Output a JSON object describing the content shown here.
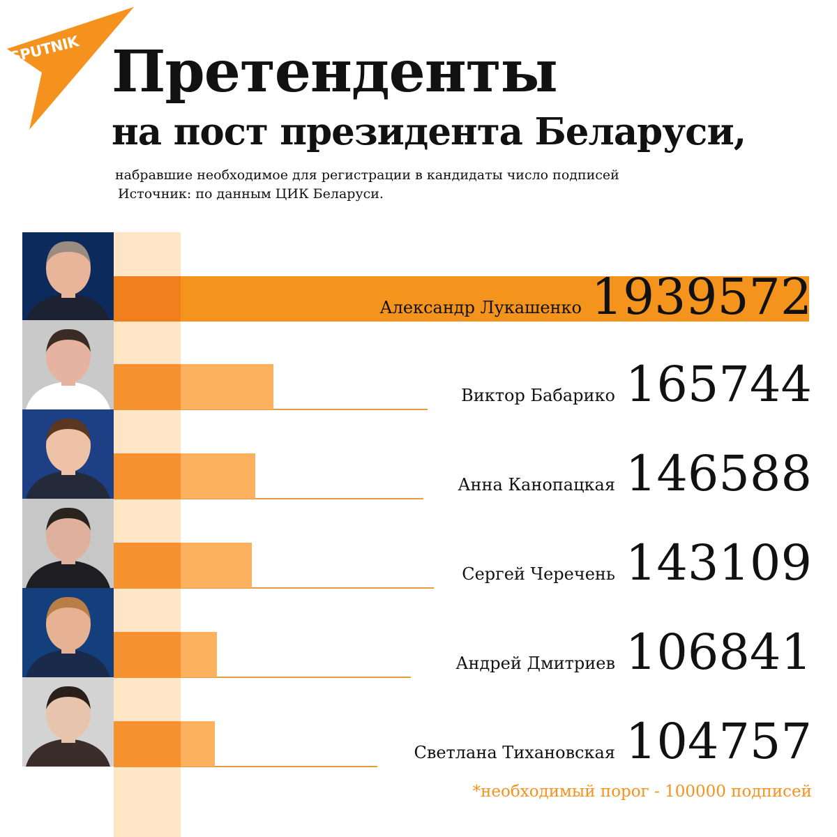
{
  "logo": {
    "text": "SPUTNIK",
    "color": "#f5921e"
  },
  "header": {
    "title": "Претенденты",
    "subtitle": "на пост президента Беларуси,",
    "description": "набравшие необходимое для регистрации в кандидаты число подписей",
    "source": "Источник: по данным ЦИК Беларуси."
  },
  "chart_data": {
    "type": "bar",
    "orientation": "horizontal",
    "categories": [
      "Александр Лукашенко",
      "Виктор Бабарико",
      "Анна Канопацкая",
      "Сергей Черечень",
      "Андрей Дмитриев",
      "Светлана Тихановская"
    ],
    "values": [
      1939572,
      165744,
      146588,
      143109,
      106841,
      104757
    ],
    "value_labels": [
      "1939572",
      "165744",
      "146588",
      "143109",
      "106841",
      "104757"
    ],
    "threshold": 100000,
    "footnote": "*необходимый порог - 100000 подписей",
    "colors": {
      "bar": "#fbb15e",
      "bar_threshold": "#f5922f",
      "top_bar": "#f5941d",
      "band": "#fde5c5",
      "accent": "#f5921e"
    }
  },
  "photos": [
    "portrait-icon",
    "portrait-icon",
    "portrait-icon",
    "portrait-icon",
    "portrait-icon",
    "portrait-icon"
  ]
}
